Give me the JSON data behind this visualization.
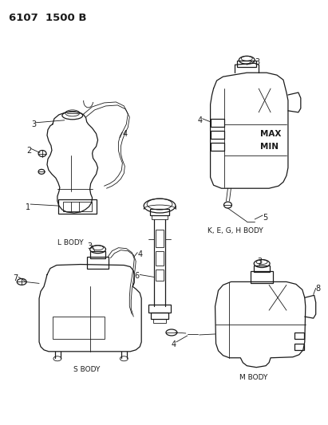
{
  "background_color": "#f5f5f0",
  "line_color": "#1a1a1a",
  "fig_width": 4.11,
  "fig_height": 5.33,
  "dpi": 100,
  "title": "6107  1500 B",
  "labels": {
    "l_body": "L BODY",
    "k_body": "K, E, G, H BODY",
    "s_body": "S BODY",
    "m_body": "M BODY",
    "num_1": "1",
    "num_2": "2",
    "num_3": "3",
    "num_4": "4",
    "num_5": "5",
    "num_6": "6",
    "num_7": "7",
    "num_8": "8",
    "max_text": "MAX",
    "min_text": "MIN"
  }
}
